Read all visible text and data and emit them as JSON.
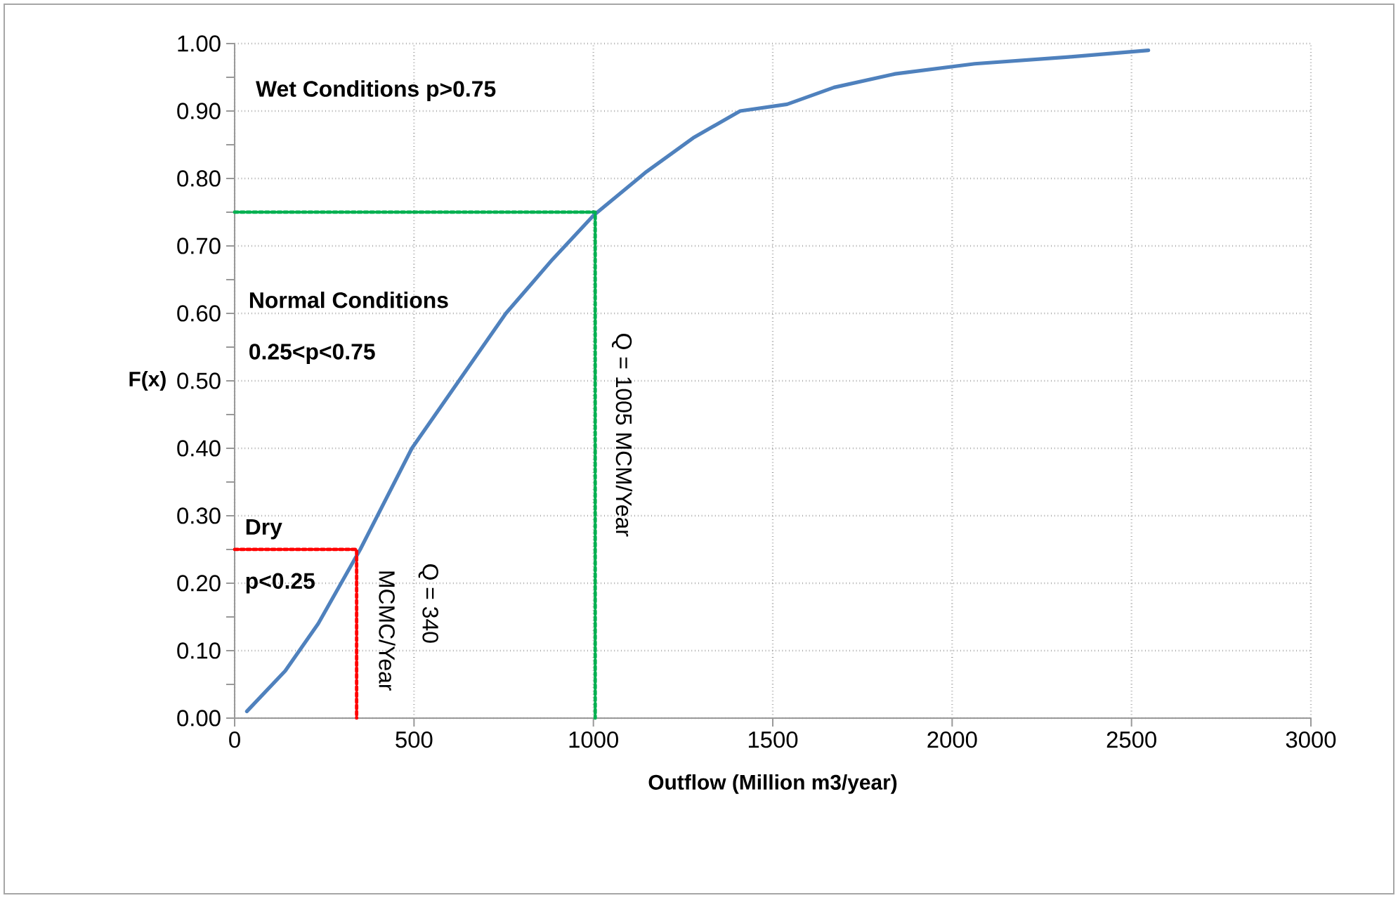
{
  "chart_data": {
    "type": "line",
    "xlabel": "Outflow (Million m3/year)",
    "ylabel": "F(x)",
    "xlim": [
      0,
      3000
    ],
    "xticks": [
      0,
      500,
      1000,
      1500,
      2000,
      2500,
      3000
    ],
    "ylim": [
      0,
      1
    ],
    "yticks": [
      {
        "value": 0,
        "label": "0.00"
      },
      {
        "value": 0.1,
        "label": "0.10"
      },
      {
        "value": 0.2,
        "label": "0.20"
      },
      {
        "value": 0.3,
        "label": "0.30"
      },
      {
        "value": 0.4,
        "label": "0.40"
      },
      {
        "value": 0.5,
        "label": "0.50"
      },
      {
        "value": 0.6,
        "label": "0.60"
      },
      {
        "value": 0.7,
        "label": "0.70"
      },
      {
        "value": 0.8,
        "label": "0.80"
      },
      {
        "value": 0.9,
        "label": "0.90"
      },
      {
        "value": 1,
        "label": "1.00"
      }
    ],
    "grid": true,
    "series": [
      {
        "color": "#4f81bd",
        "line_style": "solid",
        "x": [
          34,
          141,
          233,
          350,
          494,
          625,
          756,
          886,
          1000,
          1148,
          1278,
          1409,
          1540,
          1671,
          1841,
          2063,
          2324,
          2547
        ],
        "values": [
          0.01,
          0.07,
          0.14,
          0.25,
          0.4,
          0.5,
          0.6,
          0.68,
          0.745,
          0.81,
          0.86,
          0.9,
          0.91,
          0.935,
          0.955,
          0.97,
          0.98,
          0.99
        ]
      },
      {
        "color": "#00b050",
        "line_style": "dotted",
        "x": [
          0,
          1005,
          1005
        ],
        "values": [
          0.75,
          0.75,
          0
        ]
      },
      {
        "color": "#ff0000",
        "line_style": "dotted",
        "x": [
          0,
          340,
          340
        ],
        "values": [
          0.25,
          0.25,
          0
        ]
      }
    ],
    "annotations": [
      "Wet Conditions p>0.75",
      "Normal Conditions",
      "0.25<p<0.75",
      "Dry",
      "p<0.25",
      "Q = 1005 MCM/Year",
      "Q = 340",
      "MCMC/Year"
    ]
  }
}
